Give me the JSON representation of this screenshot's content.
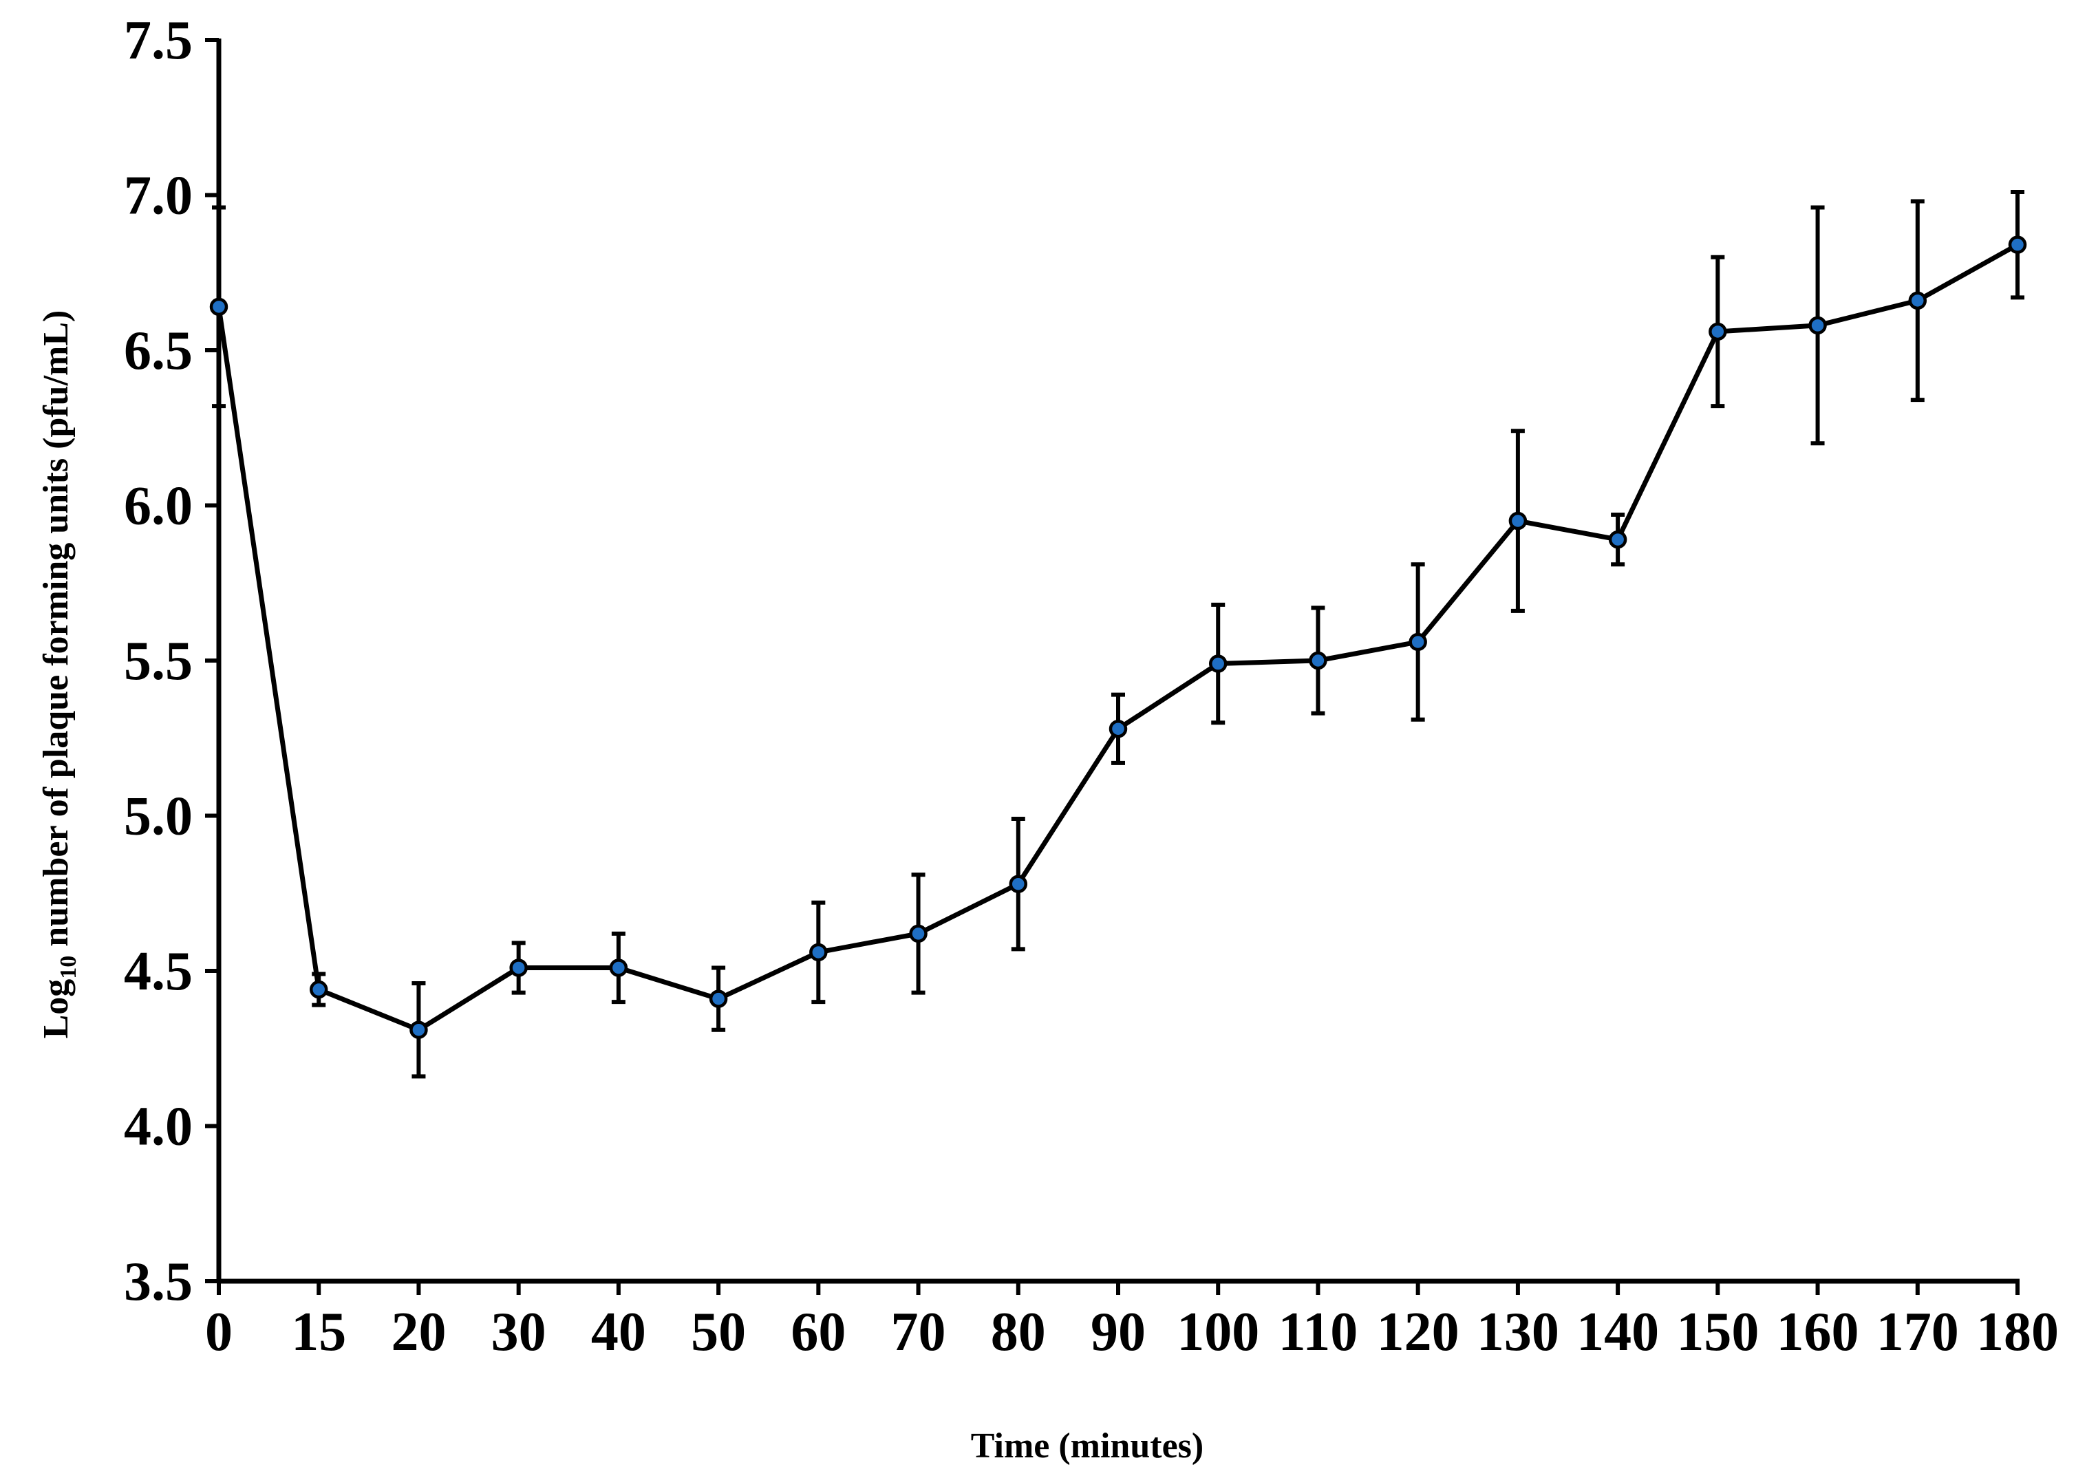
{
  "chart_data": {
    "type": "line",
    "xlabel": "Time (minutes)",
    "ylabel": {
      "prefix": "Log",
      "subscript": "10",
      "rest": " number of plaque forming units (pfu/mL)"
    },
    "ylim": [
      3.5,
      7.5
    ],
    "y_ticks": [
      "3.5",
      "4.0",
      "4.5",
      "5.0",
      "5.5",
      "6.0",
      "6.5",
      "7.0",
      "7.5"
    ],
    "x_ticks": [
      "0",
      "15",
      "20",
      "30",
      "40",
      "50",
      "60",
      "70",
      "80",
      "90",
      "100",
      "110",
      "120",
      "130",
      "140",
      "150",
      "160",
      "170",
      "180"
    ],
    "x_scale": "categorical (evenly spaced ticks)",
    "grid": false,
    "legend": "none",
    "series": [
      {
        "line_color": "#000000",
        "marker_color": "#1f6fc4",
        "x": [
          0,
          15,
          20,
          30,
          40,
          50,
          60,
          70,
          80,
          90,
          100,
          110,
          120,
          130,
          140,
          150,
          160,
          170,
          180
        ],
        "values": [
          6.64,
          4.44,
          4.31,
          4.51,
          4.51,
          4.41,
          4.56,
          4.62,
          4.78,
          5.28,
          5.49,
          5.5,
          5.56,
          5.95,
          5.89,
          6.56,
          6.58,
          6.66,
          6.84
        ],
        "error": [
          0.32,
          0.05,
          0.15,
          0.08,
          0.11,
          0.1,
          0.16,
          0.19,
          0.21,
          0.11,
          0.19,
          0.17,
          0.25,
          0.29,
          0.08,
          0.24,
          0.38,
          0.32,
          0.17
        ]
      }
    ]
  }
}
